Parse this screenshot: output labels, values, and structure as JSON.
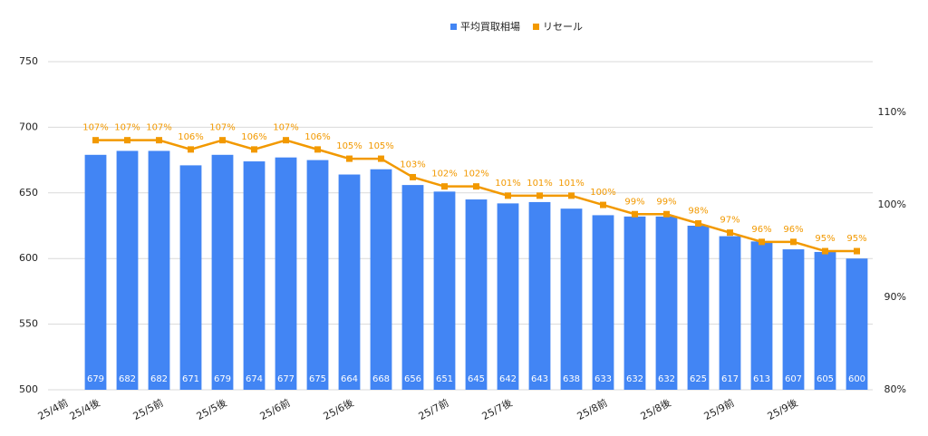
{
  "chart_data": {
    "type": "bar_line",
    "categories": [
      "25/4前",
      "25/4後",
      null,
      "25/5前",
      null,
      "25/5後",
      null,
      "25/6前",
      null,
      "25/6後",
      null,
      null,
      "25/7前",
      null,
      "25/7後",
      null,
      null,
      "25/8前",
      null,
      "25/8後",
      null,
      "25/9前",
      null,
      "25/9後",
      null,
      null
    ],
    "series": [
      {
        "name": "平均買取相場",
        "color": "#4285f4",
        "type": "bar",
        "values": [
          null,
          679,
          682,
          682,
          671,
          679,
          674,
          677,
          675,
          664,
          668,
          656,
          651,
          645,
          642,
          643,
          638,
          633,
          632,
          632,
          625,
          617,
          613,
          607,
          605,
          600
        ]
      },
      {
        "name": "リセール",
        "color": "#f29900",
        "type": "line",
        "axis": "y2",
        "values": [
          null,
          107,
          107,
          107,
          106,
          107,
          106,
          107,
          106,
          105,
          105,
          103,
          102,
          102,
          101,
          101,
          101,
          100,
          99,
          99,
          98,
          97,
          96,
          96,
          95,
          95
        ],
        "value_labels": [
          null,
          "107%",
          "107%",
          "107%",
          "106%",
          "107%",
          "106%",
          "107%",
          "106%",
          "105%",
          "105%",
          "103%",
          "102%",
          "102%",
          "101%",
          "101%",
          "101%",
          "100%",
          "99%",
          "99%",
          "98%",
          "97%",
          "96%",
          "96%",
          "95%",
          "95%"
        ]
      }
    ],
    "ylim": [
      500,
      750
    ],
    "yticks": [
      500,
      550,
      600,
      650,
      700,
      750
    ],
    "y2lim": [
      80,
      115.5
    ],
    "y2ticks": [
      {
        "value": 80,
        "label": "80%"
      },
      {
        "value": 90,
        "label": "90%"
      },
      {
        "value": 100,
        "label": "100%"
      },
      {
        "value": 110,
        "label": "110%"
      }
    ],
    "grid": true,
    "legend": "top"
  }
}
